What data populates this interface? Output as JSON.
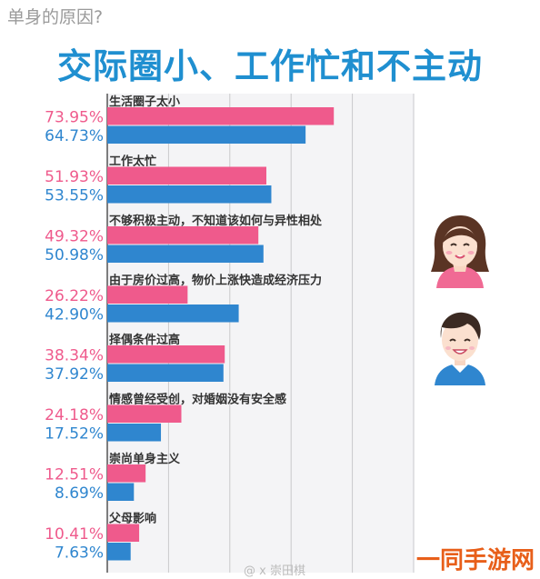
{
  "header": {
    "subtitle": "单身的原因?",
    "title": "交际圈小、工作忙和不主动"
  },
  "chart_data": {
    "type": "bar",
    "orientation": "horizontal",
    "grid": true,
    "xlim": [
      0,
      100
    ],
    "series_colors": [
      "#ef5a8c",
      "#2f86cf"
    ],
    "categories": [
      "生活圈子太小",
      "工作太忙",
      "不够积极主动，不知道该如何与异性相处",
      "由于房价过高，物价上涨快造成经济压力",
      "择偶条件过高",
      "情感曾经受创，对婚姻没有安全感",
      "崇尚单身主义",
      "父母影响"
    ],
    "series": [
      {
        "values": [
          73.95,
          51.93,
          49.32,
          26.22,
          38.34,
          24.18,
          12.51,
          10.41
        ],
        "labels": [
          "73.95%",
          "51.93%",
          "49.32%",
          "26.22%",
          "38.34%",
          "24.18%",
          "12.51%",
          "10.41%"
        ]
      },
      {
        "values": [
          64.73,
          53.55,
          50.98,
          42.9,
          37.92,
          17.52,
          8.69,
          7.63
        ],
        "labels": [
          "64.73%",
          "53.55%",
          "50.98%",
          "42.90%",
          "37.92%",
          "17.52%",
          "8.69%",
          "7.63%"
        ]
      }
    ]
  },
  "watermarks": {
    "brand": "一同手游网",
    "weibo": "@ x 崇田棋"
  }
}
